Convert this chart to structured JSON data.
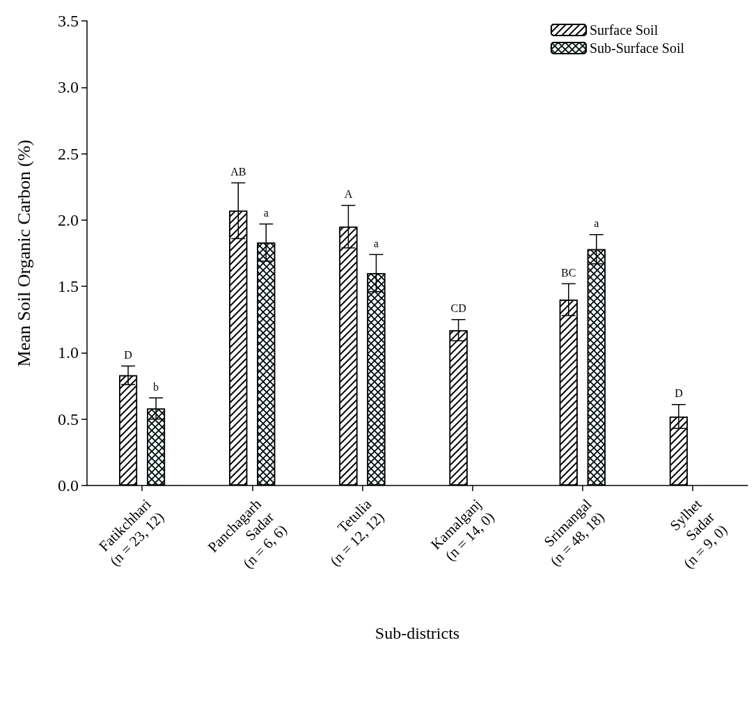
{
  "chart_data": {
    "type": "bar",
    "xlabel": "Sub-districts",
    "ylabel": "Mean Soil Organic Carbon (%)",
    "categories": [
      "Fatikchhari\n(n = 23, 12)",
      "Panchagarh\nSadar\n(n = 6, 6)",
      "Tetulia\n(n = 12, 12)",
      "Kamalganj\n(n = 14, 0)",
      "Srimangal\n(n = 48, 18)",
      "Sylhet\nSadar\n(n = 9, 0)"
    ],
    "series": [
      {
        "name": "Surface Soil",
        "color": "#ffffff",
        "values": [
          0.83,
          2.07,
          1.95,
          1.17,
          1.4,
          0.52
        ],
        "errors": [
          0.07,
          0.21,
          0.16,
          0.08,
          0.12,
          0.09
        ],
        "value_labels": [
          "D",
          "AB",
          "A",
          "CD",
          "BC",
          "D"
        ]
      },
      {
        "name": "Sub-Surface Soil",
        "color": "#f0ffff",
        "values": [
          0.58,
          1.83,
          1.6,
          null,
          1.78,
          null
        ],
        "errors": [
          0.08,
          0.14,
          0.14,
          null,
          0.11,
          null
        ],
        "value_labels": [
          "b",
          "a",
          "a",
          null,
          "a",
          null
        ]
      }
    ],
    "ylim": [
      0,
      3.5
    ],
    "yticks": [
      {
        "value": 0,
        "label": "0.0"
      },
      {
        "value": 0.5,
        "label": "0.5"
      },
      {
        "value": 1,
        "label": "1.0"
      },
      {
        "value": 1.5,
        "label": "1.5"
      },
      {
        "value": 2,
        "label": "2.0"
      },
      {
        "value": 2.5,
        "label": "2.5"
      },
      {
        "value": 3,
        "label": "3.0"
      },
      {
        "value": 3.5,
        "label": "3.5"
      }
    ],
    "grid": false,
    "legend": "top right"
  }
}
